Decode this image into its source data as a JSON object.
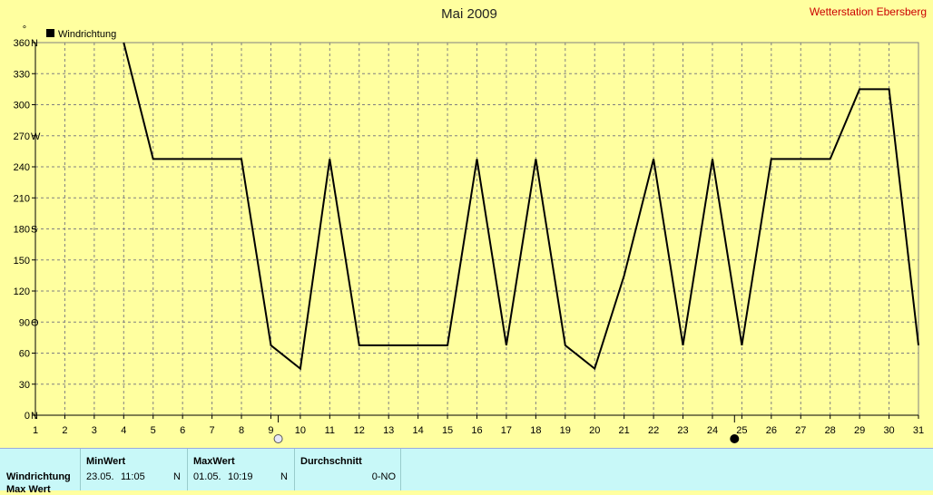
{
  "header": {
    "title": "Mai 2009",
    "station": "Wetterstation Ebersberg"
  },
  "legend": {
    "label": "Windrichtung",
    "color": "#000000"
  },
  "axis": {
    "y_unit_mark": "°",
    "y_ticks": [
      {
        "value": 0,
        "label": "0",
        "dir": "N"
      },
      {
        "value": 30,
        "label": "30",
        "dir": ""
      },
      {
        "value": 60,
        "label": "60",
        "dir": ""
      },
      {
        "value": 90,
        "label": "90",
        "dir": "O"
      },
      {
        "value": 120,
        "label": "120",
        "dir": ""
      },
      {
        "value": 150,
        "label": "150",
        "dir": ""
      },
      {
        "value": 180,
        "label": "180",
        "dir": "S"
      },
      {
        "value": 210,
        "label": "210",
        "dir": ""
      },
      {
        "value": 240,
        "label": "240",
        "dir": ""
      },
      {
        "value": 270,
        "label": "270",
        "dir": "W"
      },
      {
        "value": 300,
        "label": "300",
        "dir": ""
      },
      {
        "value": 330,
        "label": "330",
        "dir": ""
      },
      {
        "value": 360,
        "label": "360",
        "dir": "N"
      }
    ],
    "x_ticks": [
      "1",
      "2",
      "3",
      "4",
      "5",
      "6",
      "7",
      "8",
      "9",
      "10",
      "11",
      "12",
      "13",
      "14",
      "15",
      "16",
      "17",
      "18",
      "19",
      "20",
      "21",
      "22",
      "23",
      "24",
      "25",
      "26",
      "27",
      "28",
      "29",
      "30",
      "31"
    ]
  },
  "moon_markers": [
    {
      "day": 9.25,
      "phase": "full-moon-icon"
    },
    {
      "day": 24.75,
      "phase": "new-moon-icon"
    }
  ],
  "chart_data": {
    "type": "line",
    "title": "Mai 2009",
    "xlabel": "",
    "ylabel": "",
    "xlim": [
      1,
      31
    ],
    "ylim": [
      0,
      360
    ],
    "grid": true,
    "legend_position": "top-left",
    "series": [
      {
        "name": "Windrichtung",
        "x": [
          4,
          5,
          6,
          7,
          8,
          9,
          10,
          11,
          12,
          13,
          14,
          15,
          16,
          17,
          18,
          19,
          20,
          21,
          22,
          23,
          24,
          25,
          26,
          27,
          28,
          29,
          30,
          31
        ],
        "values": [
          360,
          247.5,
          247.5,
          247.5,
          247.5,
          67.5,
          45,
          247.5,
          67.5,
          67.5,
          67.5,
          67.5,
          247.5,
          67.5,
          247.5,
          67.5,
          45,
          135,
          247.5,
          67.5,
          247.5,
          67.5,
          247.5,
          247.5,
          247.5,
          315,
          315,
          67.5
        ]
      }
    ]
  },
  "stats": {
    "row_label": "Windrichtung",
    "row_label_cut": "Max Wert",
    "columns": [
      {
        "header": "MinWert",
        "date": "23.05.",
        "time": "11:05",
        "dir": "N"
      },
      {
        "header": "MaxWert",
        "date": "01.05.",
        "time": "10:19",
        "dir": "N"
      },
      {
        "header": "Durchschnitt",
        "value": "0-NO"
      }
    ]
  }
}
